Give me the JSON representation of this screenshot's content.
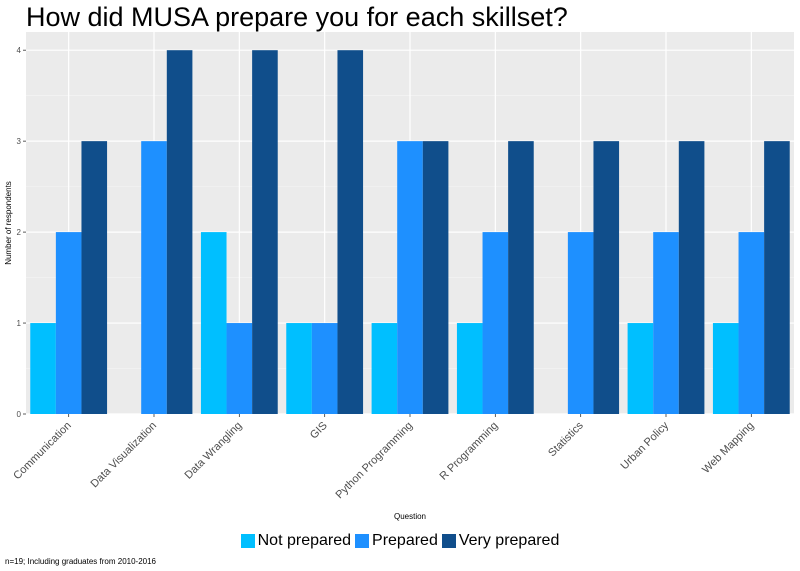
{
  "chart_data": {
    "type": "bar",
    "title": "How did MUSA prepare you for each skillset?",
    "xlabel": "Question",
    "ylabel": "Number of respondents",
    "categories": [
      "Communication",
      "Data Visualization",
      "Data Wrangling",
      "GIS",
      "Python Programming",
      "R Programming",
      "Statistics",
      "Urban Policy",
      "Web Mapping"
    ],
    "series": [
      {
        "name": "Not prepared",
        "color": "#00bfff",
        "values": [
          1,
          0,
          2,
          1,
          1,
          1,
          0,
          1,
          1
        ]
      },
      {
        "name": "Prepared",
        "color": "#1e90ff",
        "values": [
          2,
          3,
          1,
          1,
          3,
          2,
          2,
          2,
          2
        ]
      },
      {
        "name": "Very prepared",
        "color": "#104e8b",
        "values": [
          3,
          4,
          4,
          4,
          3,
          3,
          3,
          3,
          3
        ]
      }
    ],
    "yticks": [
      0,
      1,
      2,
      3,
      4
    ],
    "ylim": [
      0,
      4.2
    ],
    "grid": true,
    "legend_position": "bottom",
    "caption": "n=19; Including graduates from 2010-2016"
  }
}
